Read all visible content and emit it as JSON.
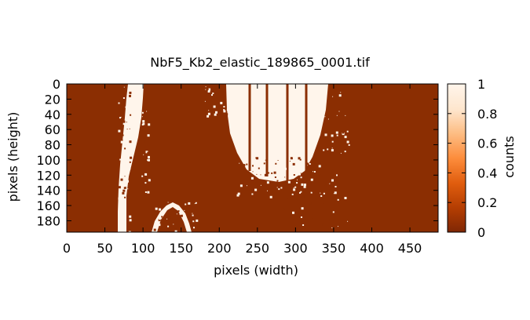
{
  "chart_data": {
    "type": "heatmap",
    "title": "NbF5_Kb2_elastic_189865_0001.tif",
    "xlabel": "pixels (width)",
    "ylabel": "pixels (height)",
    "colorbar_label": "counts",
    "xlim": [
      0,
      487
    ],
    "ylim": [
      195,
      0
    ],
    "x_ticks": [
      0,
      50,
      100,
      150,
      200,
      250,
      300,
      350,
      400,
      450
    ],
    "y_ticks": [
      0,
      20,
      40,
      60,
      80,
      100,
      120,
      140,
      160,
      180
    ],
    "colorbar_ticks": [
      0,
      0.2,
      0.4,
      0.6,
      0.8,
      1
    ],
    "colorbar_range": [
      0,
      1
    ],
    "colormap": [
      "#7f2704",
      "#b33d02",
      "#e05d0e",
      "#fd8d3c",
      "#fdbe85",
      "#fee6ce",
      "#fff5eb"
    ],
    "background_value": 0,
    "regions_value_1": [
      {
        "shape": "stripe",
        "x_at_top": [
          80,
          101
        ],
        "x_at_bottom": [
          70,
          80
        ],
        "y": [
          0,
          195
        ]
      },
      {
        "shape": "u-band",
        "x_range": [
          210,
          340
        ],
        "y": [
          0,
          125
        ]
      },
      {
        "shape": "arc",
        "x_range": [
          108,
          163
        ],
        "y_apex": 155
      }
    ]
  }
}
